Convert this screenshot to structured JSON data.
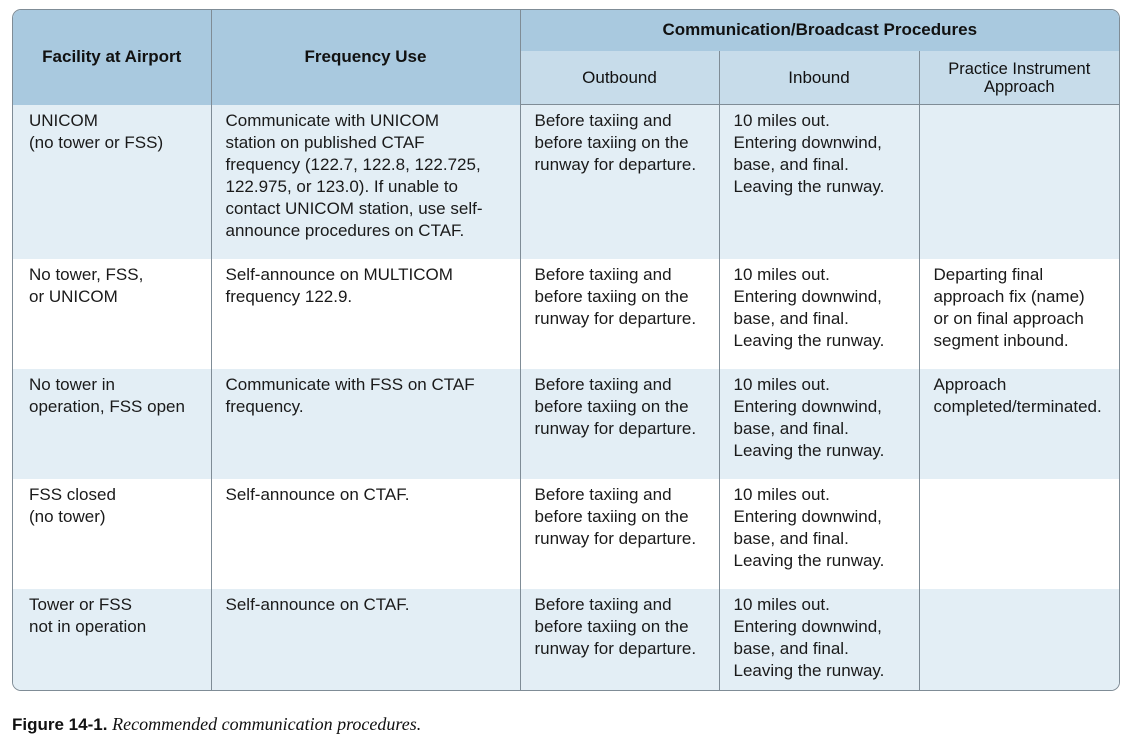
{
  "table": {
    "headers": {
      "facility": "Facility at Airport",
      "frequency": "Frequency Use",
      "group": "Communication/Broadcast Procedures",
      "outbound": "Outbound",
      "inbound": "Inbound",
      "practice": [
        "Practice Instrument",
        "Approach"
      ]
    },
    "rows": [
      {
        "facility": [
          "UNICOM",
          "(no tower or FSS)"
        ],
        "frequency": [
          "Communicate with UNICOM",
          "station on published CTAF",
          "frequency (122.7, 122.8, 122.725,",
          "122.975, or 123.0). If unable to",
          "contact UNICOM station, use self-",
          "announce procedures on CTAF."
        ],
        "outbound": [
          "Before taxiing and",
          "before taxiing on the",
          "runway for departure."
        ],
        "inbound": [
          "10 miles out.",
          "Entering downwind,",
          "base, and final.",
          "Leaving the runway."
        ],
        "practice": []
      },
      {
        "facility": [
          "No tower, FSS,",
          "or UNICOM"
        ],
        "frequency": [
          "Self-announce on MULTICOM",
          "frequency 122.9."
        ],
        "outbound": [
          "Before taxiing and",
          "before taxiing on the",
          "runway for departure."
        ],
        "inbound": [
          "10 miles out.",
          "Entering downwind,",
          "base, and final.",
          "Leaving the runway."
        ],
        "practice": [
          "Departing final",
          "approach fix (name)",
          "or on final approach",
          "segment inbound."
        ]
      },
      {
        "facility": [
          "No tower in",
          "operation, FSS open"
        ],
        "frequency": [
          "Communicate with FSS on CTAF",
          "frequency."
        ],
        "outbound": [
          "Before taxiing and",
          "before taxiing on the",
          "runway for departure."
        ],
        "inbound": [
          "10 miles out.",
          "Entering downwind,",
          "base, and final.",
          "Leaving the runway."
        ],
        "practice": [
          "Approach",
          "completed/terminated."
        ]
      },
      {
        "facility": [
          "FSS closed",
          "(no tower)"
        ],
        "frequency": [
          "Self-announce on CTAF."
        ],
        "outbound": [
          "Before taxiing and",
          "before taxiing on the",
          "runway for departure."
        ],
        "inbound": [
          "10 miles out.",
          "Entering downwind,",
          "base, and final.",
          "Leaving the runway."
        ],
        "practice": []
      },
      {
        "facility": [
          "Tower or FSS",
          "not in operation"
        ],
        "frequency": [
          "Self-announce on CTAF."
        ],
        "outbound": [
          "Before taxiing and",
          "before taxiing on the",
          "runway for departure."
        ],
        "inbound": [
          "10 miles out.",
          "Entering downwind,",
          "base, and final.",
          "Leaving the runway."
        ],
        "practice": []
      }
    ]
  },
  "caption": {
    "label": "Figure 14-1.",
    "text": "Recommended communication procedures."
  },
  "colors": {
    "header": "#a9c9df",
    "subheader": "#c7dcea",
    "band": "#e3eef5",
    "border": "#7f8c96"
  }
}
